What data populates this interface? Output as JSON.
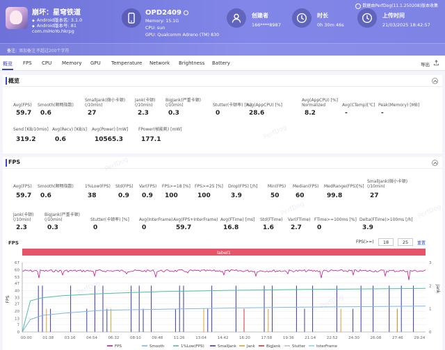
{
  "header": {
    "app_name": "崩坏：星穹铁道",
    "android_version": "Android版本名: 3.1.0",
    "android_code": "Android版本号: 81",
    "package": "com.miHoYo.hkrpg",
    "device_name": "OPD2409",
    "memory": "Memory: 15.1G",
    "cpu": "CPU: sun",
    "gpu": "GPU: Qualcomm Adreno (TM) 830",
    "creator_title": "创建者",
    "creator_value": "166****8987",
    "duration_title": "时长",
    "duration_value": "0h 30m 46s",
    "upload_title": "上传时间",
    "upload_value": "21/03/2025 18:42:57",
    "source": "数据由PerfDog(11.1.250208)版本收集",
    "note_label": "备注:",
    "note_edit": "添加备注",
    "note_hint": "不超过200个字符"
  },
  "tabs": [
    "概览",
    "FPS",
    "CPU",
    "Memory",
    "GPU",
    "Temperature",
    "Network",
    "Brightness",
    "Battery"
  ],
  "export_label": "导出",
  "overview": {
    "title": "概览",
    "row1": [
      {
        "label": "Avg(FPS)",
        "value": "59.7"
      },
      {
        "label": "Smooth(顺畅指数)",
        "value": "0.6"
      },
      {
        "label": "SmallJank(微小卡顿)\n(/10min)",
        "value": "27"
      },
      {
        "label": "Jank(卡顿)\n(/10min)",
        "value": "2.3"
      },
      {
        "label": "BigJank(严重卡顿)\n(/10min)",
        "value": "0.3"
      },
      {
        "label": "Stutter(卡顿率) [%]",
        "value": "0"
      },
      {
        "label": "Avg(AppCPU) [%]",
        "value": "28.6"
      },
      {
        "label": "Avg(AppCPU) [%]\nNormalized",
        "value": "8.2"
      },
      {
        "label": "Avg(CTemp)[℃]",
        "value": "-"
      },
      {
        "label": "Peak(Memory) [MB]",
        "value": "-"
      }
    ],
    "row2": [
      {
        "label": "Send [KB/10min]",
        "value": "319.2"
      },
      {
        "label": "Avg(Recv) [KB/s]",
        "value": "0.6"
      },
      {
        "label": "Avg(Power) [mW]",
        "value": "10565.3"
      },
      {
        "label": "FPower(帧能耗) [mW]",
        "value": "177.1"
      }
    ]
  },
  "fps_section": {
    "title": "FPS",
    "row1": [
      {
        "label": "Avg(FPS)",
        "value": "59.7"
      },
      {
        "label": "Smooth(顺畅指数)",
        "value": "0.6"
      },
      {
        "label": "1%Low(FPS)",
        "value": "38"
      },
      {
        "label": "Std(FPS)",
        "value": "0.9"
      },
      {
        "label": "Var(FPS)",
        "value": "0.9"
      },
      {
        "label": "FPS>=18 [%]",
        "value": "100"
      },
      {
        "label": "FPS>=25 [%]",
        "value": "100"
      },
      {
        "label": "Drop(FPS) [/h]",
        "value": "3.9"
      },
      {
        "label": "Min(FPS)",
        "value": "50"
      },
      {
        "label": "Median(FPS)",
        "value": "60"
      },
      {
        "label": "MedRange(FPS)[%]",
        "value": "99.8"
      },
      {
        "label": "SmallJank(微小卡顿)\n(/10min)",
        "value": "27"
      }
    ],
    "row2": [
      {
        "label": "Jank(卡顿)\n(/10min)",
        "value": "2.3"
      },
      {
        "label": "BigJank(严重卡顿)\n(/10min)",
        "value": "0.3"
      },
      {
        "label": "Stutter(卡顿率) [%]",
        "value": "0"
      },
      {
        "label": "Avg(InterFrame)",
        "value": "0"
      },
      {
        "label": "Avg(FPS+InterFrame)",
        "value": "59.7"
      },
      {
        "label": "Avg(FTime) [ms]",
        "value": "16.8"
      },
      {
        "label": "Std(FTime)",
        "value": "1.6"
      },
      {
        "label": "Var(FTime)",
        "value": "2.7"
      },
      {
        "label": "FTime>=100ms [%]",
        "value": "0"
      },
      {
        "label": "Delta(FTime)>100ms [/h]",
        "value": "3.9"
      }
    ]
  },
  "chart_ctrl": {
    "tag": "FPS",
    "label": "FPS(>=)",
    "val1": "18",
    "val2": "25",
    "apply": "重置",
    "banner": "label1",
    "left_axis_title": "FPS",
    "right_axis_title": "Jank"
  },
  "watermark": "PerfDog",
  "chart_data": {
    "type": "line",
    "ylim": [
      0,
      67
    ],
    "yticks": [
      0,
      7,
      13,
      20,
      27,
      33,
      40,
      47,
      53,
      60,
      67
    ],
    "y2lim": [
      0,
      3
    ],
    "y2ticks": [
      0,
      1,
      2,
      3
    ],
    "xticks": [
      "00:00",
      "01:38",
      "03:16",
      "04:54",
      "06:32",
      "08:10",
      "09:48",
      "11:26",
      "13:04",
      "14:42",
      "16:20",
      "17:58",
      "19:36",
      "21:14",
      "22:52",
      "24:30",
      "26:08",
      "27:46",
      "29:24"
    ],
    "legend": [
      "FPS",
      "Smooth",
      "1%Low(FPS)",
      "SmallJank",
      "Jank",
      "BigJank",
      "Stutter",
      "InterFrame"
    ],
    "colors": {
      "FPS": "#c2188f",
      "Smooth": "#7fb6e6",
      "1%Low(FPS)": "#4cbfa0",
      "SmallJank": "#3a3aa8",
      "Jank": "#e0a020",
      "BigJank": "#d83030",
      "Stutter": "#c0c0c0",
      "InterFrame": "#8ed0e8"
    },
    "fps_base": 60,
    "fps_dips": [
      [
        0.04,
        52
      ],
      [
        0.1,
        55
      ],
      [
        0.18,
        54
      ],
      [
        0.26,
        56
      ],
      [
        0.33,
        53
      ],
      [
        0.41,
        57
      ],
      [
        0.5,
        55
      ],
      [
        0.58,
        54
      ],
      [
        0.66,
        56
      ],
      [
        0.74,
        52
      ],
      [
        0.82,
        55
      ],
      [
        0.9,
        54
      ],
      [
        0.96,
        50
      ]
    ],
    "low1pct": [
      [
        0,
        0
      ],
      [
        0.02,
        30
      ],
      [
        0.05,
        33
      ],
      [
        0.1,
        35
      ],
      [
        0.2,
        37
      ],
      [
        0.35,
        39
      ],
      [
        0.5,
        40
      ],
      [
        0.7,
        41
      ],
      [
        1.0,
        42
      ]
    ],
    "smooth": [
      [
        0,
        0
      ],
      [
        0.02,
        12
      ],
      [
        0.05,
        16
      ],
      [
        0.1,
        18
      ],
      [
        0.2,
        21
      ],
      [
        0.35,
        22
      ],
      [
        0.5,
        23
      ],
      [
        0.7,
        24
      ],
      [
        1.0,
        25
      ]
    ],
    "small_jank_x": [
      0.04,
      0.05,
      0.07,
      0.12,
      0.16,
      0.18,
      0.2,
      0.21,
      0.27,
      0.29,
      0.3,
      0.32,
      0.38,
      0.39,
      0.4,
      0.46,
      0.47,
      0.53,
      0.55,
      0.6,
      0.62,
      0.68,
      0.7,
      0.72,
      0.78,
      0.82,
      0.84,
      0.87,
      0.91,
      0.93,
      0.94,
      0.97
    ],
    "small_jank_h": [
      2,
      2,
      1,
      2,
      1,
      2,
      2,
      1,
      2,
      2,
      1,
      2,
      1,
      2,
      2,
      1,
      2,
      2,
      1,
      2,
      2,
      2,
      1,
      2,
      2,
      1,
      2,
      2,
      2,
      1,
      2,
      2
    ],
    "jank_x": [
      0.06,
      0.22,
      0.45,
      0.61,
      0.79,
      0.93
    ],
    "bigjank_x": [
      0.55
    ]
  }
}
